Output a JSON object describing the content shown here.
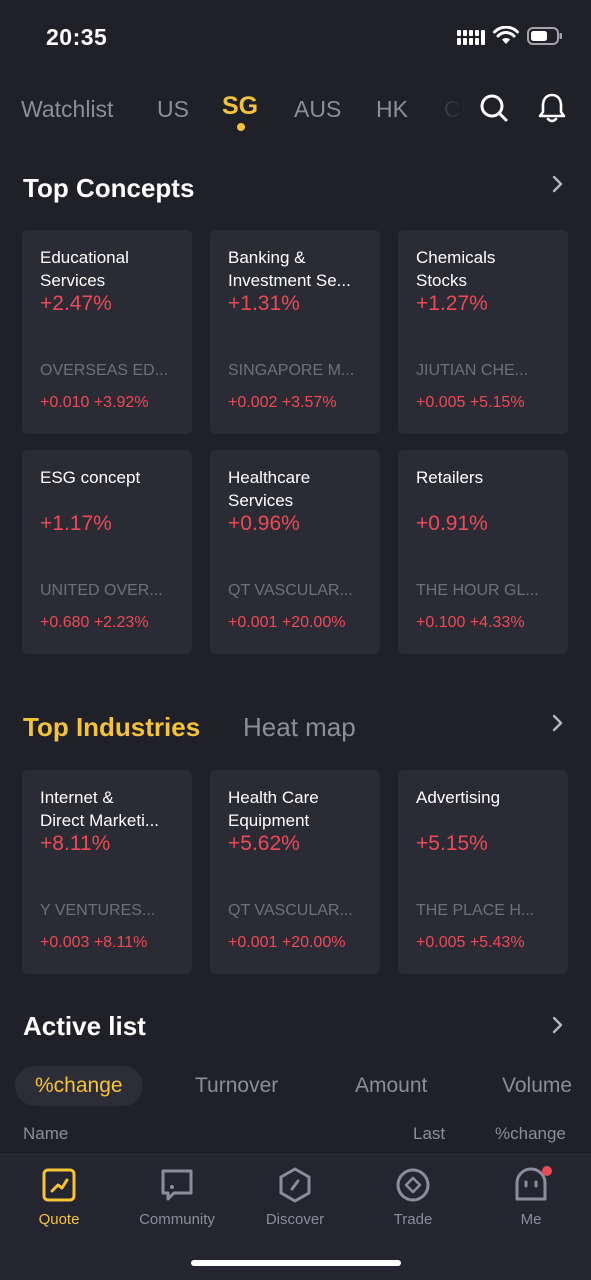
{
  "status": {
    "time": "20:35"
  },
  "market_tabs": [
    {
      "label": "Watchlist",
      "active": false
    },
    {
      "label": "US",
      "active": false
    },
    {
      "label": "SG",
      "active": true
    },
    {
      "label": "AUS",
      "active": false
    },
    {
      "label": "HK",
      "active": false
    },
    {
      "label": "CN",
      "active": false
    }
  ],
  "top_concepts": {
    "title": "Top Concepts",
    "cards": [
      {
        "name1": "Educational",
        "name2": "Services",
        "pct": "+2.47%",
        "stock": "OVERSEAS ED...",
        "change": "+0.010 +3.92%"
      },
      {
        "name1": "Banking &",
        "name2": "Investment Se...",
        "pct": "+1.31%",
        "stock": "SINGAPORE M...",
        "change": "+0.002 +3.57%"
      },
      {
        "name1": "Chemicals",
        "name2": "Stocks",
        "pct": "+1.27%",
        "stock": "JIUTIAN CHE...",
        "change": "+0.005 +5.15%"
      },
      {
        "name1": "ESG concept",
        "name2": "",
        "pct": "+1.17%",
        "stock": "UNITED OVER...",
        "change": "+0.680 +2.23%"
      },
      {
        "name1": "Healthcare",
        "name2": "Services",
        "pct": "+0.96%",
        "stock": "QT VASCULAR...",
        "change": "+0.001 +20.00%"
      },
      {
        "name1": "Retailers",
        "name2": "",
        "pct": "+0.91%",
        "stock": "THE HOUR GL...",
        "change": "+0.100 +4.33%"
      }
    ]
  },
  "industries": {
    "tab_active": "Top Industries",
    "tab_inactive": "Heat map",
    "cards": [
      {
        "name1": "Internet &",
        "name2": "Direct Marketi...",
        "pct": "+8.11%",
        "stock": "Y VENTURES...",
        "change": "+0.003 +8.11%"
      },
      {
        "name1": "Health Care",
        "name2": "Equipment",
        "pct": "+5.62%",
        "stock": "QT VASCULAR...",
        "change": "+0.001 +20.00%"
      },
      {
        "name1": "Advertising",
        "name2": "",
        "pct": "+5.15%",
        "stock": "THE PLACE H...",
        "change": "+0.005 +5.43%"
      }
    ]
  },
  "active_list": {
    "title": "Active list",
    "filters": [
      "%change",
      "Turnover",
      "Amount",
      "Volume"
    ],
    "columns": {
      "name": "Name",
      "last": "Last",
      "pct": "%change"
    }
  },
  "bottom_nav": [
    {
      "label": "Quote",
      "icon": "quote-icon",
      "active": true
    },
    {
      "label": "Community",
      "icon": "community-icon",
      "active": false
    },
    {
      "label": "Discover",
      "icon": "discover-icon",
      "active": false
    },
    {
      "label": "Trade",
      "icon": "trade-icon",
      "active": false
    },
    {
      "label": "Me",
      "icon": "me-icon",
      "active": false
    }
  ],
  "colors": {
    "accent": "#f5c338",
    "up": "#ee4a55",
    "background": "#1f2028",
    "card": "#2a2b35"
  }
}
